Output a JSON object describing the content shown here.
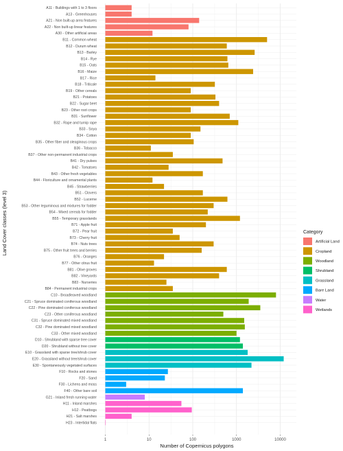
{
  "chart_data": {
    "type": "bar",
    "orientation": "horizontal",
    "x_scale": "log",
    "xlim": [
      1,
      13000
    ],
    "xlabel": "Number of Copernicus polygons",
    "ylabel": "Land Cover classes (level 3)",
    "grid": true,
    "legend_position": "right",
    "x_ticks": [
      {
        "value": 1,
        "label": "1"
      },
      {
        "value": 10,
        "label": "10"
      },
      {
        "value": 100,
        "label": "100"
      },
      {
        "value": 1000,
        "label": "1000"
      },
      {
        "value": 10000,
        "label": "10000"
      }
    ],
    "legend": {
      "title": "Category",
      "items": [
        {
          "name": "Artificial Land",
          "color": "#F8766D"
        },
        {
          "name": "Cropland",
          "color": "#CD9600"
        },
        {
          "name": "Woodland",
          "color": "#7CAE00"
        },
        {
          "name": "Shrubland",
          "color": "#00BE67"
        },
        {
          "name": "Grassland",
          "color": "#00BFC4"
        },
        {
          "name": "Bare Land",
          "color": "#00A9FF"
        },
        {
          "name": "Water",
          "color": "#C77CFF"
        },
        {
          "name": "Wetlands",
          "color": "#FF61CC"
        }
      ]
    },
    "bars": [
      {
        "label": "A11 - Buildings with 1 to 3 floors",
        "value": 4,
        "category": "Artificial Land"
      },
      {
        "label": "A13 - Greenhouses",
        "value": 4,
        "category": "Artificial Land"
      },
      {
        "label": "A21 - Non built-up area features",
        "value": 140,
        "category": "Artificial Land"
      },
      {
        "label": "A22 - Non built-up linear features",
        "value": 80,
        "category": "Artificial Land"
      },
      {
        "label": "A30 - Other artificial areas",
        "value": 12,
        "category": "Artificial Land"
      },
      {
        "label": "B11 - Common wheat",
        "value": 5000,
        "category": "Cropland"
      },
      {
        "label": "B12 - Durum wheat",
        "value": 600,
        "category": "Cropland"
      },
      {
        "label": "B13 - Barley",
        "value": 2600,
        "category": "Cropland"
      },
      {
        "label": "B14 - Rye",
        "value": 620,
        "category": "Cropland"
      },
      {
        "label": "B15 - Oats",
        "value": 650,
        "category": "Cropland"
      },
      {
        "label": "B16 - Maize",
        "value": 2400,
        "category": "Cropland"
      },
      {
        "label": "B17 - Rice",
        "value": 14,
        "category": "Cropland"
      },
      {
        "label": "B18 - Triticale",
        "value": 320,
        "category": "Cropland"
      },
      {
        "label": "B19 - Other cereals",
        "value": 90,
        "category": "Cropland"
      },
      {
        "label": "B21 - Potatoes",
        "value": 330,
        "category": "Cropland"
      },
      {
        "label": "B22 - Sugar beet",
        "value": 400,
        "category": "Cropland"
      },
      {
        "label": "B23 - Other root crops",
        "value": 90,
        "category": "Cropland"
      },
      {
        "label": "B31 - Sunflower",
        "value": 700,
        "category": "Cropland"
      },
      {
        "label": "B32 - Rape and turnip rape",
        "value": 1100,
        "category": "Cropland"
      },
      {
        "label": "B33 - Soya",
        "value": 150,
        "category": "Cropland"
      },
      {
        "label": "B34 - Cotton",
        "value": 90,
        "category": "Cropland"
      },
      {
        "label": "B35 - Other fiber and oleaginous crops",
        "value": 105,
        "category": "Cropland"
      },
      {
        "label": "B36 - Tobacco",
        "value": 11,
        "category": "Cropland"
      },
      {
        "label": "B37 - Other non-permanent industrial crops",
        "value": 35,
        "category": "Cropland"
      },
      {
        "label": "B41 - Dry pulses",
        "value": 480,
        "category": "Cropland"
      },
      {
        "label": "B42 - Tomatoes",
        "value": 28,
        "category": "Cropland"
      },
      {
        "label": "B43 - Other fresh vegetables",
        "value": 170,
        "category": "Cropland"
      },
      {
        "label": "B44 - Floriculture and ornamental plants",
        "value": 12,
        "category": "Cropland"
      },
      {
        "label": "B45 - Strawberries",
        "value": 22,
        "category": "Cropland"
      },
      {
        "label": "B51 - Clovers",
        "value": 170,
        "category": "Cropland"
      },
      {
        "label": "B52 - Lucerne",
        "value": 620,
        "category": "Cropland"
      },
      {
        "label": "B53 - Other leguminous and mixtures for fodder",
        "value": 300,
        "category": "Cropland"
      },
      {
        "label": "B54 - Mixed cereals for fodder",
        "value": 220,
        "category": "Cropland"
      },
      {
        "label": "B55 - Temporary grasslands",
        "value": 1200,
        "category": "Cropland"
      },
      {
        "label": "B71 - Apple fruit",
        "value": 200,
        "category": "Cropland"
      },
      {
        "label": "B72 - Pear fruit",
        "value": 35,
        "category": "Cropland"
      },
      {
        "label": "B73 - Cherry fruit",
        "value": 50,
        "category": "Cropland"
      },
      {
        "label": "B74 - Nuts trees",
        "value": 300,
        "category": "Cropland"
      },
      {
        "label": "B75 - Other fruit trees and berries",
        "value": 160,
        "category": "Cropland"
      },
      {
        "label": "B76 - Oranges",
        "value": 22,
        "category": "Cropland"
      },
      {
        "label": "B77 - Other citrus fruit",
        "value": 13,
        "category": "Cropland"
      },
      {
        "label": "B81 - Olive groves",
        "value": 600,
        "category": "Cropland"
      },
      {
        "label": "B82 - Vineyards",
        "value": 400,
        "category": "Cropland"
      },
      {
        "label": "B83 - Nurseries",
        "value": 25,
        "category": "Cropland"
      },
      {
        "label": "B84 - Permanent industrial crops",
        "value": 35,
        "category": "Cropland"
      },
      {
        "label": "C10 - Broadleaved woodland",
        "value": 8000,
        "category": "Woodland"
      },
      {
        "label": "C21 - Spruce dominated coniferous woodland",
        "value": 1900,
        "category": "Woodland"
      },
      {
        "label": "C22 - Pine dominated coniferous woodland",
        "value": 3500,
        "category": "Woodland"
      },
      {
        "label": "C23 - Other coniferous woodland",
        "value": 500,
        "category": "Woodland"
      },
      {
        "label": "C31 - Spruce dominated mixed woodland",
        "value": 1500,
        "category": "Woodland"
      },
      {
        "label": "C32 - Pine dominated mixed woodland",
        "value": 1550,
        "category": "Woodland"
      },
      {
        "label": "C33 - Other mixed woodland",
        "value": 1000,
        "category": "Woodland"
      },
      {
        "label": "D10 - Shrubland with sparse tree cover",
        "value": 1200,
        "category": "Shrubland"
      },
      {
        "label": "D20 - Shrubland without tree cover",
        "value": 1400,
        "category": "Shrubland"
      },
      {
        "label": "E10 - Grassland with sparse tree/shrub cover",
        "value": 1800,
        "category": "Grassland"
      },
      {
        "label": "E20 - Grassland without tree/shrub cover",
        "value": 12000,
        "category": "Grassland"
      },
      {
        "label": "E30 - Spontaneously vegetated surfaces",
        "value": 2200,
        "category": "Grassland"
      },
      {
        "label": "F10 - Rocks and stones",
        "value": 27,
        "category": "Bare Land"
      },
      {
        "label": "F20 - Sand",
        "value": 23,
        "category": "Bare Land"
      },
      {
        "label": "F30 - Lichens and moss",
        "value": 3,
        "category": "Bare Land"
      },
      {
        "label": "F40 - Other bare soil",
        "value": 1400,
        "category": "Bare Land"
      },
      {
        "label": "G21 - Inland fresh running water",
        "value": 8,
        "category": "Water"
      },
      {
        "label": "H11 - Inland marshes",
        "value": 55,
        "category": "Wetlands"
      },
      {
        "label": "H12 - Peatbogs",
        "value": 95,
        "category": "Wetlands"
      },
      {
        "label": "H21 - Salt marshes",
        "value": 4,
        "category": "Wetlands"
      },
      {
        "label": "H23 - Intertidal flats",
        "value": 1,
        "category": "Wetlands"
      }
    ]
  }
}
